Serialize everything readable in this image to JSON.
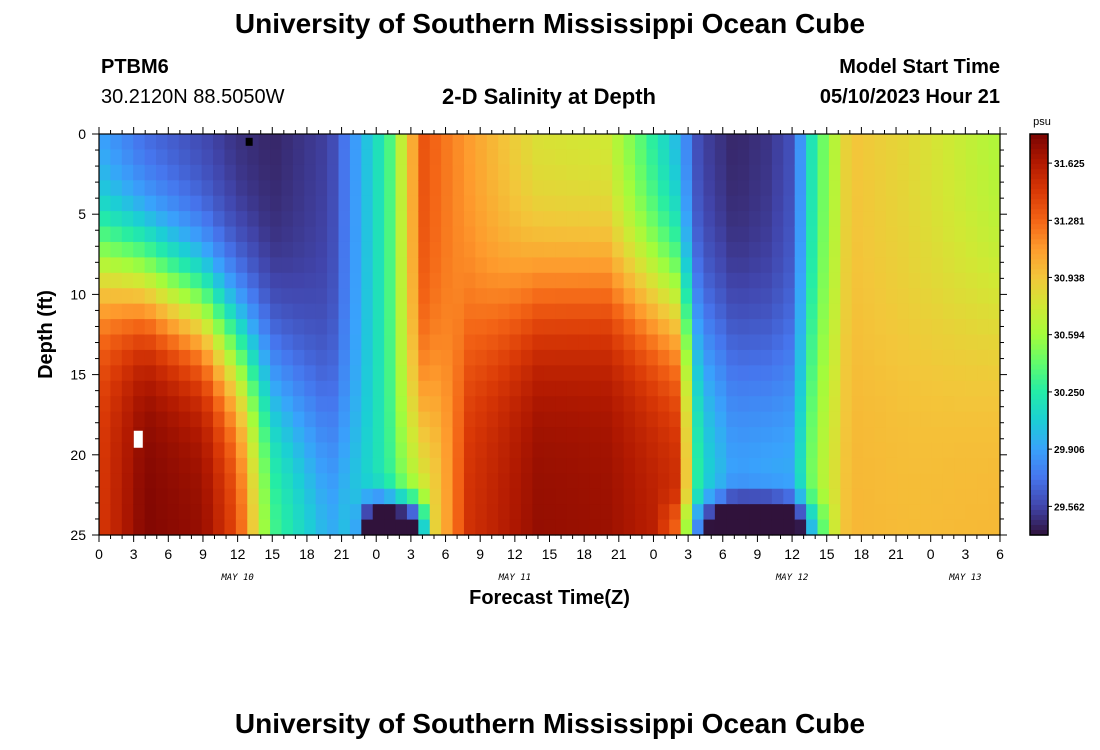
{
  "header": {
    "title": "University of Southern Mississippi Ocean Cube",
    "station_id": "PTBM6",
    "station_coords": "30.2120N  88.5050W",
    "plot_title": "2-D Salinity at Depth",
    "model_start_label": "Model Start Time",
    "model_start_value": "05/10/2023 Hour 21"
  },
  "footer": {
    "title": "University of Southern Mississippi Ocean Cube"
  },
  "chart_data": {
    "type": "heatmap",
    "title": "2-D Salinity at Depth",
    "xlabel": "Forecast Time(Z)",
    "ylabel": "Depth (ft)",
    "x_tick_labels": [
      "0",
      "3",
      "6",
      "9",
      "12",
      "15",
      "18",
      "21",
      "0",
      "3",
      "6",
      "9",
      "12",
      "15",
      "18",
      "21",
      "0",
      "3",
      "6",
      "9",
      "12",
      "15",
      "18",
      "21",
      "0",
      "3",
      "6"
    ],
    "x_range_hours": [
      0,
      78
    ],
    "day_labels": [
      {
        "label": "MAY 10",
        "hour": 12
      },
      {
        "label": "MAY 11",
        "hour": 36
      },
      {
        "label": "MAY 12",
        "hour": 60
      },
      {
        "label": "MAY 13",
        "hour": 75
      }
    ],
    "y_tick_labels": [
      "0",
      "5",
      "10",
      "15",
      "20",
      "25"
    ],
    "y_range_ft": [
      0,
      25
    ],
    "colorbar": {
      "unit": "psu",
      "tick_labels": [
        "31.625",
        "31.281",
        "30.938",
        "30.594",
        "30.250",
        "29.906",
        "29.562"
      ],
      "range": [
        29.39,
        31.8
      ]
    },
    "colormap": [
      "#30123b",
      "#4145ab",
      "#4675ed",
      "#39a2fc",
      "#1bcfd4",
      "#24eca6",
      "#61fc6c",
      "#a4fc3b",
      "#d1e834",
      "#f3c63a",
      "#fe9b2d",
      "#f36315",
      "#d93806",
      "#b11901",
      "#7a0402"
    ],
    "field_model": {
      "note": "salinity (psu) as function of forecast hour t and depth d (ft); reconstructed from the image",
      "times": [
        0,
        4,
        9,
        12,
        15,
        20,
        25,
        28,
        32,
        38,
        44,
        50,
        52,
        55,
        58,
        60,
        62,
        65,
        70,
        78
      ],
      "surface": [
        29.85,
        29.65,
        29.55,
        29.48,
        29.45,
        29.55,
        30.3,
        31.35,
        31.1,
        30.78,
        30.73,
        29.95,
        29.55,
        29.45,
        29.5,
        29.6,
        30.3,
        30.95,
        30.85,
        30.62
      ],
      "bottom": [
        31.45,
        31.78,
        31.72,
        31.4,
        30.4,
        30.0,
        30.25,
        30.6,
        31.5,
        31.72,
        31.7,
        31.55,
        30.2,
        29.95,
        30.0,
        30.0,
        30.6,
        31.0,
        30.98,
        31.0
      ],
      "transition_depth_ft": [
        8,
        9,
        11,
        13.5,
        15.5,
        18.5,
        20,
        18,
        13,
        10,
        9.5,
        10.5,
        13,
        14,
        15,
        15,
        14,
        13,
        12,
        11
      ],
      "transition_width_ft": [
        2.5,
        2.5,
        2.6,
        2.8,
        3.2,
        3.5,
        3.5,
        3.2,
        3.0,
        2.8,
        2.8,
        3.0,
        3.2,
        3.4,
        3.4,
        3.4,
        3.4,
        3.4,
        3.4,
        3.4
      ],
      "deep_layer": {
        "times": [
          0,
          22,
          24,
          27,
          29,
          48,
          52,
          55,
          58,
          60,
          62,
          64,
          78
        ],
        "values": [
          0,
          0,
          -1.3,
          -1.4,
          0,
          0,
          -0.5,
          -1.3,
          -1.4,
          -1.0,
          -0.4,
          0,
          0
        ],
        "center_ft": 24.5,
        "sigma_ft": 1.6
      },
      "grid": {
        "nt": 79,
        "nd": 26
      }
    },
    "markers": [
      {
        "type": "black-square",
        "hour": 13.0,
        "depth_ft": 0.3
      },
      {
        "type": "white-rect",
        "hour": 3.4,
        "depth_ft": 19.0
      }
    ]
  }
}
